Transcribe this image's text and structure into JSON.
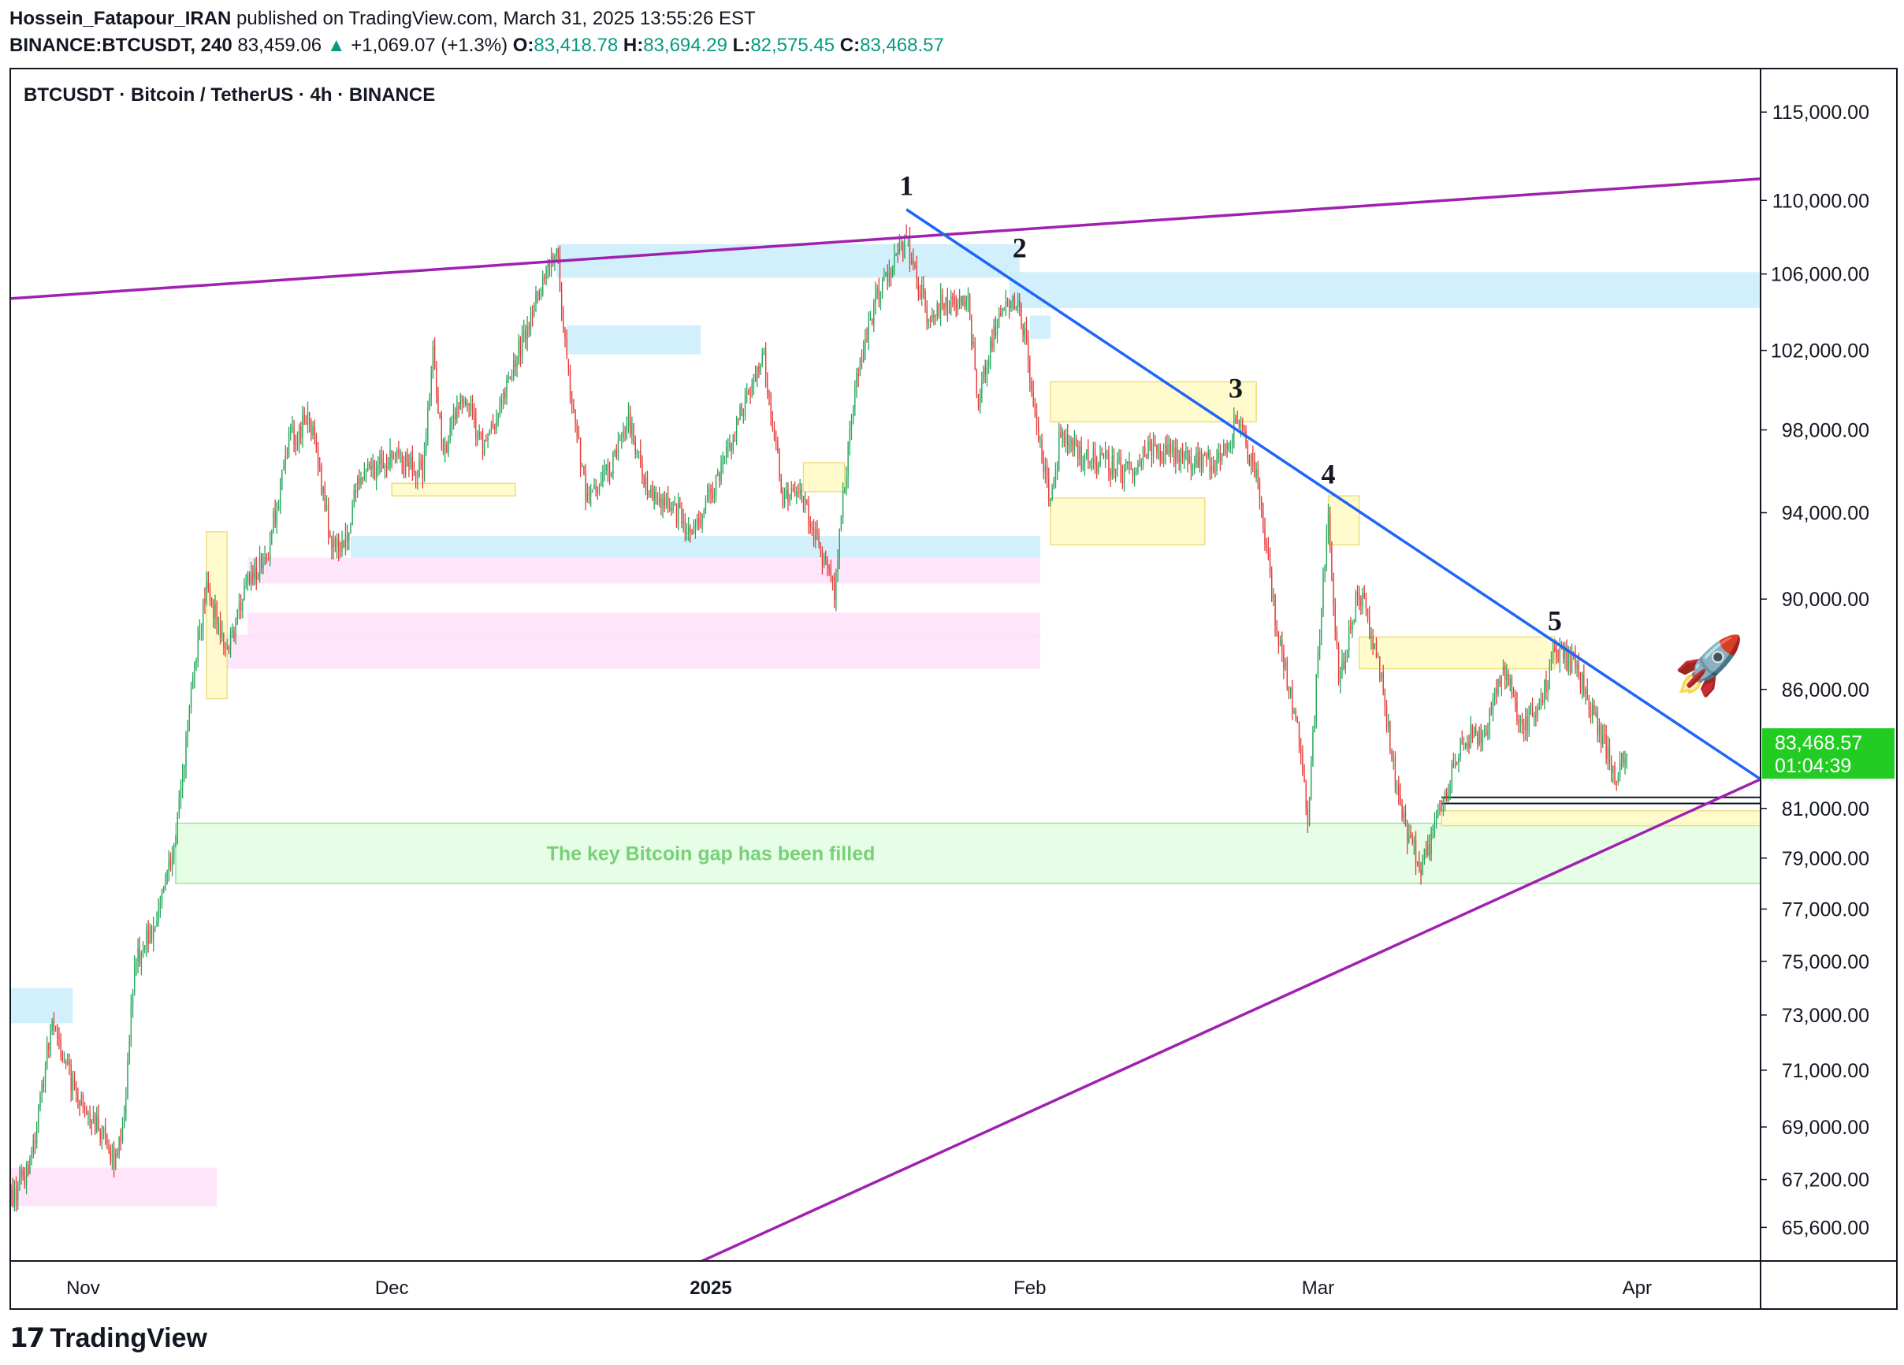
{
  "header": {
    "author": "Hossein_Fatapour_IRAN",
    "published_text": " published on TradingView.com, March 31, 2025 13:55:26 EST",
    "symbol": "BINANCE:BTCUSDT, 240",
    "last": "83,459.06",
    "change": "+1,069.07 (+1.3%)",
    "o_label": "O:",
    "o_value": "83,418.78",
    "h_label": "H:",
    "h_value": "83,694.29",
    "l_label": "L:",
    "l_value": "82,575.45",
    "c_label": "C:",
    "c_value": "83,468.57"
  },
  "footer": {
    "brand": "TradingView",
    "mark": "17"
  },
  "colors": {
    "up": "#089981",
    "candle_up": "#26a65b",
    "candle_down": "#e53935",
    "trend_blue": "#1e66f5",
    "channel_purple": "#a020b0",
    "price_tag": "#22cc22",
    "zone_blue": "#cceefc",
    "zone_yellow": "#fffbc8",
    "zone_pink": "#ffe0f8",
    "zone_green": "#e3fde3",
    "gap_text": "#78d078"
  },
  "chart_data": {
    "type": "candlestick",
    "title": "BTCUSDT · Bitcoin / TetherUS · 4h · BINANCE",
    "timeframe": "4h",
    "yscale": "log",
    "ylim": [
      64500,
      117500
    ],
    "y_ticks": [
      "115,000.00",
      "110,000.00",
      "106,000.00",
      "102,000.00",
      "98,000.00",
      "94,000.00",
      "90,000.00",
      "86,000.00",
      "81,000.00",
      "79,000.00",
      "77,000.00",
      "75,000.00",
      "73,000.00",
      "71,000.00",
      "69,000.00",
      "67,200.00",
      "65,600.00"
    ],
    "y_tick_values": [
      115000,
      110000,
      106000,
      102000,
      98000,
      94000,
      90000,
      86000,
      81000,
      79000,
      77000,
      75000,
      73000,
      71000,
      69000,
      67200,
      65600
    ],
    "x_ticks": [
      {
        "label": "Nov",
        "date": "2024-11-01",
        "bold": false
      },
      {
        "label": "Dec",
        "date": "2024-12-01",
        "bold": false
      },
      {
        "label": "2025",
        "date": "2025-01-01",
        "bold": true
      },
      {
        "label": "Feb",
        "date": "2025-02-01",
        "bold": false
      },
      {
        "label": "Mar",
        "date": "2025-03-01",
        "bold": false
      },
      {
        "label": "Apr",
        "date": "2025-04-01",
        "bold": false
      }
    ],
    "xlim": [
      "2024-10-25",
      "2025-04-13"
    ],
    "price_path": [
      [
        "2024-10-25",
        66500
      ],
      [
        "2024-10-27",
        67800
      ],
      [
        "2024-10-29",
        72800
      ],
      [
        "2024-10-31",
        70500
      ],
      [
        "2024-11-02",
        69300
      ],
      [
        "2024-11-04",
        67800
      ],
      [
        "2024-11-05",
        69500
      ],
      [
        "2024-11-06",
        74800
      ],
      [
        "2024-11-08",
        76400
      ],
      [
        "2024-11-10",
        80000
      ],
      [
        "2024-11-12",
        87500
      ],
      [
        "2024-11-13",
        90500
      ],
      [
        "2024-11-15",
        87800
      ],
      [
        "2024-11-17",
        90600
      ],
      [
        "2024-11-19",
        92300
      ],
      [
        "2024-11-21",
        97500
      ],
      [
        "2024-11-23",
        98600
      ],
      [
        "2024-11-25",
        93000
      ],
      [
        "2024-11-26",
        91900
      ],
      [
        "2024-11-28",
        95800
      ],
      [
        "2024-12-01",
        96500
      ],
      [
        "2024-12-04",
        96000
      ],
      [
        "2024-12-05",
        101800
      ],
      [
        "2024-12-06",
        97000
      ],
      [
        "2024-12-08",
        99700
      ],
      [
        "2024-12-10",
        97000
      ],
      [
        "2024-12-13",
        101500
      ],
      [
        "2024-12-15",
        104500
      ],
      [
        "2024-12-17",
        107500
      ],
      [
        "2024-12-18",
        101000
      ],
      [
        "2024-12-20",
        94500
      ],
      [
        "2024-12-22",
        96000
      ],
      [
        "2024-12-24",
        98500
      ],
      [
        "2024-12-26",
        94800
      ],
      [
        "2024-12-28",
        94500
      ],
      [
        "2024-12-30",
        93000
      ],
      [
        "2025-01-02",
        96000
      ],
      [
        "2025-01-06",
        102000
      ],
      [
        "2025-01-08",
        94800
      ],
      [
        "2025-01-10",
        94500
      ],
      [
        "2025-01-13",
        90500
      ],
      [
        "2025-01-15",
        100000
      ],
      [
        "2025-01-17",
        104500
      ],
      [
        "2025-01-20",
        107800
      ],
      [
        "2025-01-22",
        104000
      ],
      [
        "2025-01-24",
        104500
      ],
      [
        "2025-01-26",
        104300
      ],
      [
        "2025-01-27",
        99500
      ],
      [
        "2025-01-29",
        104000
      ],
      [
        "2025-01-31",
        104500
      ],
      [
        "2025-02-02",
        97000
      ],
      [
        "2025-02-03",
        94500
      ],
      [
        "2025-02-04",
        98000
      ],
      [
        "2025-02-06",
        96500
      ],
      [
        "2025-02-08",
        96500
      ],
      [
        "2025-02-10",
        96000
      ],
      [
        "2025-02-13",
        97000
      ],
      [
        "2025-02-16",
        96500
      ],
      [
        "2025-02-19",
        96500
      ],
      [
        "2025-02-21",
        98400
      ],
      [
        "2025-02-23",
        96000
      ],
      [
        "2025-02-25",
        88700
      ],
      [
        "2025-02-27",
        84300
      ],
      [
        "2025-02-28",
        80500
      ],
      [
        "2025-03-02",
        94200
      ],
      [
        "2025-03-03",
        86200
      ],
      [
        "2025-03-05",
        90500
      ],
      [
        "2025-03-07",
        86800
      ],
      [
        "2025-03-09",
        80800
      ],
      [
        "2025-03-11",
        78500
      ],
      [
        "2025-03-13",
        81000
      ],
      [
        "2025-03-15",
        84000
      ],
      [
        "2025-03-17",
        84000
      ],
      [
        "2025-03-19",
        86800
      ],
      [
        "2025-03-21",
        84300
      ],
      [
        "2025-03-23",
        86000
      ],
      [
        "2025-03-24",
        87800
      ],
      [
        "2025-03-26",
        87000
      ],
      [
        "2025-03-28",
        84500
      ],
      [
        "2025-03-30",
        82300
      ],
      [
        "2025-03-31",
        83468
      ]
    ],
    "candle_seed": 2025,
    "current_price": "83,468.57",
    "countdown": "01:04:39",
    "annotations": {
      "wave_labels": [
        {
          "text": "1",
          "date": "2025-01-20",
          "price": 110300
        },
        {
          "text": "2",
          "date": "2025-01-31",
          "price": 106900
        },
        {
          "text": "3",
          "date": "2025-02-21",
          "price": 99600
        },
        {
          "text": "4",
          "date": "2025-03-02",
          "price": 95400
        },
        {
          "text": "5",
          "date": "2025-03-24",
          "price": 88600
        }
      ],
      "gap_label": "The key Bitcoin gap has been filled",
      "rocket": "🚀",
      "trendline_blue": [
        [
          "2025-01-20",
          109500
        ],
        [
          "2025-04-13",
          82200
        ]
      ],
      "channel_upper": [
        [
          "2024-10-25",
          104700
        ],
        [
          "2025-04-13",
          111200
        ]
      ],
      "channel_lower": [
        [
          "2024-12-04",
          60500
        ],
        [
          "2025-04-13",
          82200
        ]
      ]
    },
    "zones": [
      {
        "kind": "blue",
        "from": "2024-10-25",
        "to": "2024-10-31",
        "top": 74000,
        "bottom": 72700
      },
      {
        "kind": "pink",
        "from": "2024-10-25",
        "to": "2024-11-14",
        "top": 67600,
        "bottom": 66300
      },
      {
        "kind": "green",
        "from": "2024-11-10",
        "to": "2025-04-13",
        "top": 80400,
        "bottom": 78000
      },
      {
        "kind": "pink",
        "from": "2024-11-13",
        "to": "2025-02-02",
        "top": 88400,
        "bottom": 86900
      },
      {
        "kind": "pink",
        "from": "2024-11-17",
        "to": "2025-02-02",
        "top": 89400,
        "bottom": 88200
      },
      {
        "kind": "pink",
        "from": "2024-11-17",
        "to": "2025-02-02",
        "top": 91900,
        "bottom": 90700
      },
      {
        "kind": "blue",
        "from": "2024-11-27",
        "to": "2025-02-02",
        "top": 92900,
        "bottom": 91900
      },
      {
        "kind": "blue",
        "from": "2024-12-18",
        "to": "2024-12-31",
        "top": 103300,
        "bottom": 101800
      },
      {
        "kind": "blue",
        "from": "2024-12-17",
        "to": "2025-01-31",
        "top": 107600,
        "bottom": 105800
      },
      {
        "kind": "blue",
        "from": "2025-01-30",
        "to": "2025-04-13",
        "top": 106100,
        "bottom": 104200
      },
      {
        "kind": "blue",
        "from": "2025-02-01",
        "to": "2025-02-03",
        "top": 103800,
        "bottom": 102600
      },
      {
        "kind": "yellow",
        "from": "2024-11-13",
        "to": "2024-11-15",
        "top": 93100,
        "bottom": 85600
      },
      {
        "kind": "yellow",
        "from": "2024-12-01",
        "to": "2024-12-13",
        "top": 95400,
        "bottom": 94800
      },
      {
        "kind": "yellow",
        "from": "2025-01-10",
        "to": "2025-01-14",
        "top": 96400,
        "bottom": 95000
      },
      {
        "kind": "yellow",
        "from": "2025-02-03",
        "to": "2025-02-23",
        "top": 100400,
        "bottom": 98400
      },
      {
        "kind": "yellow",
        "from": "2025-02-03",
        "to": "2025-02-18",
        "top": 94700,
        "bottom": 92500
      },
      {
        "kind": "yellow",
        "from": "2025-03-02",
        "to": "2025-03-05",
        "top": 94800,
        "bottom": 92500
      },
      {
        "kind": "yellow",
        "from": "2025-03-05",
        "to": "2025-03-24",
        "top": 88300,
        "bottom": 86900
      },
      {
        "kind": "yellow",
        "from": "2025-03-13",
        "to": "2025-04-13",
        "top": 80900,
        "bottom": 80300
      }
    ],
    "level_lines": [
      {
        "from": "2025-03-13",
        "to": "2025-04-13",
        "price": 81200
      },
      {
        "from": "2025-03-13",
        "to": "2025-04-13",
        "price": 81450
      }
    ]
  }
}
